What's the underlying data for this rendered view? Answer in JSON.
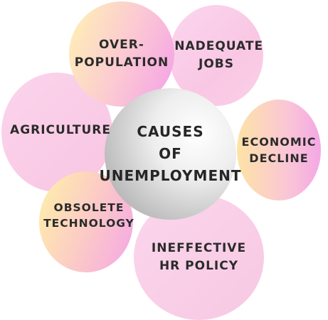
{
  "diagram": {
    "center": {
      "lines": [
        "CAUSES",
        "OF",
        "UNEMPLOYMENT"
      ]
    },
    "causes": [
      {
        "id": "overpopulation",
        "lines": [
          "OVER-",
          "POPULATION"
        ]
      },
      {
        "id": "inadequate-jobs",
        "lines": [
          "INADEQUATE",
          "JOBS"
        ]
      },
      {
        "id": "economic-decline",
        "lines": [
          "ECONOMIC",
          "DECLINE"
        ]
      },
      {
        "id": "ineffective-hr-policy",
        "lines": [
          "INEFFECTIVE",
          "HR POLICY"
        ]
      },
      {
        "id": "obsolete-technology",
        "lines": [
          "OBSOLETE",
          "TECHNOLOGY"
        ]
      },
      {
        "id": "agriculture",
        "lines": [
          "AGRICULTURE"
        ]
      }
    ]
  }
}
